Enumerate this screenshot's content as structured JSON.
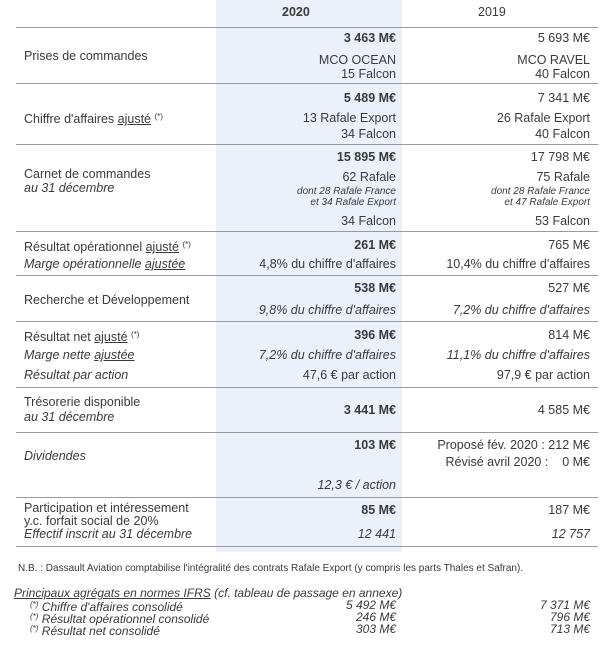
{
  "header": {
    "col1": "2020",
    "col2": "2019"
  },
  "prises": {
    "label": "Prises de commandes",
    "v1": "3 463 M€",
    "v2": "5 693 M€",
    "d1a": "MCO OCEAN",
    "d1b": "15 Falcon",
    "d2a": "MCO RAVEL",
    "d2b": "40 Falcon"
  },
  "ca": {
    "label": "Chiffre d'affaires ",
    "label_u": "ajusté",
    "sup": "(*)",
    "v1": "5 489 M€",
    "v2": "7 341 M€",
    "d1a": "13 Rafale Export",
    "d1b": "34 Falcon",
    "d2a": "26 Rafale Export",
    "d2b": "40 Falcon"
  },
  "carnet": {
    "label": "Carnet de commandes",
    "sub": "au 31 décembre",
    "v1": "15 895 M€",
    "v2": "17 798 M€",
    "r1": "62 Rafale",
    "r1a": "dont 28 Rafale France",
    "r1b": "et 34 Rafale Export",
    "f1": "34 Falcon",
    "r2": "75 Rafale",
    "r2a": "dont 28 Rafale France",
    "r2b": "et 47 Rafale Export",
    "f2": "53 Falcon"
  },
  "rop": {
    "label": "Résultat opérationnel ",
    "label_u": "ajusté",
    "sup": "(*)",
    "v1": "261 M€",
    "v2": "765 M€",
    "m_label": "Marge opérationnelle ",
    "m_label_u": "ajustée",
    "m1": "4,8% du chiffre d'affaires",
    "m2": "10,4% du chiffre d'affaires"
  },
  "rd": {
    "label": "Recherche et Développement",
    "v1": "538 M€",
    "v2": "527 M€",
    "m1": "9,8% du chiffre d'affaires",
    "m2": "7,2% du chiffre d'affaires"
  },
  "rnet": {
    "label": "Résultat net ",
    "label_u": "ajusté",
    "sup": "(*)",
    "v1": "396 M€",
    "v2": "814 M€",
    "m_label": "Marge nette ",
    "m_label_u": "ajustée",
    "m1": "7,2% du chiffre d'affaires",
    "m2": "11,1% du chiffre d'affaires",
    "rpa_label": "Résultat par action",
    "rpa1": "47,6 € par action",
    "rpa2": "97,9 € par action"
  },
  "treso": {
    "label": "Trésorerie disponible",
    "sub": "au 31 décembre",
    "v1": "3 441 M€",
    "v2": "4 585 M€"
  },
  "div": {
    "label": "Dividendes",
    "v1": "103 M€",
    "v2a": "Proposé fév. 2020 : 212 M€",
    "v2b": "Révisé avril 2020 :    0 M€",
    "per1": "12,3 € / action"
  },
  "part": {
    "label1": "Participation et intéressement",
    "label2": "y.c. forfait social de 20%",
    "label3": "Effectif inscrit au 31 décembre",
    "v1": "85 M€",
    "v2": "187 M€",
    "e1": "12 441",
    "e2": "12 757"
  },
  "nb": "N.B. : Dassault Aviation comptabilise l'intégralité des contrats Rafale Export (y compris les parts Thales et Safran).",
  "ifrs": {
    "title_u": "Principaux agrégats en normes IFRS",
    "title_rest": " (cf. tableau de passage en annexe)",
    "mark": "(*)",
    "rows": [
      {
        "label": "Chiffre d'affaires consolidé",
        "v1": "5 492 M€",
        "v2": "7 371 M€"
      },
      {
        "label": "Résultat opérationnel consolidé",
        "v1": "246 M€",
        "v2": "796 M€"
      },
      {
        "label": "Résultat net consolidé",
        "v1": "303 M€",
        "v2": "713 M€"
      }
    ]
  }
}
